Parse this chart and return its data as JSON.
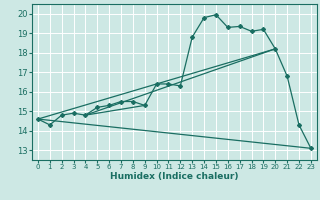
{
  "xlabel": "Humidex (Indice chaleur)",
  "bg_color": "#cde8e4",
  "grid_color": "#ffffff",
  "line_color": "#1a6e62",
  "xlim": [
    -0.5,
    23.5
  ],
  "ylim": [
    12.5,
    20.5
  ],
  "xticks": [
    0,
    1,
    2,
    3,
    4,
    5,
    6,
    7,
    8,
    9,
    10,
    11,
    12,
    13,
    14,
    15,
    16,
    17,
    18,
    19,
    20,
    21,
    22,
    23
  ],
  "yticks": [
    13,
    14,
    15,
    16,
    17,
    18,
    19,
    20
  ],
  "line1_x": [
    0,
    1,
    2,
    3,
    4,
    5,
    6,
    7,
    8,
    9,
    10,
    11,
    12,
    13,
    14,
    15,
    16,
    17,
    18,
    19,
    20,
    21,
    22,
    23
  ],
  "line1_y": [
    14.6,
    14.3,
    14.8,
    14.9,
    14.8,
    15.2,
    15.3,
    15.5,
    15.5,
    15.3,
    16.4,
    16.4,
    16.3,
    18.8,
    19.8,
    19.95,
    19.3,
    19.35,
    19.1,
    19.2,
    18.2,
    16.8,
    14.3,
    13.1
  ],
  "line2_x": [
    0,
    20
  ],
  "line2_y": [
    14.6,
    18.2
  ],
  "line3_x": [
    0,
    23
  ],
  "line3_y": [
    14.6,
    13.1
  ],
  "line4_x": [
    4,
    9
  ],
  "line4_y": [
    14.8,
    15.3
  ],
  "line5_x": [
    4,
    20
  ],
  "line5_y": [
    14.8,
    18.2
  ]
}
